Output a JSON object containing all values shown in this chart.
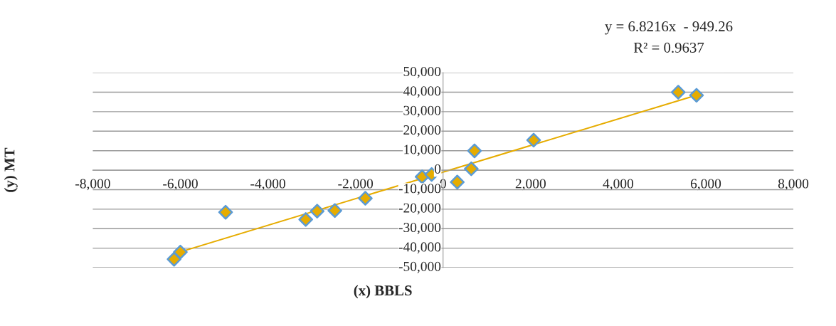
{
  "chart_data": {
    "type": "scatter",
    "xlabel": "(x) BBLS",
    "ylabel": "(y) MT",
    "annotations": [
      "y = 6.8216x  - 949.26",
      "R² = 0.9637"
    ],
    "series": [
      {
        "type": "scatter",
        "color": "#e6ac00",
        "marker": "diamond",
        "x": [
          -6144,
          -6000,
          -4967,
          -3137,
          -2876,
          -2472,
          -1776,
          -479,
          -261,
          324,
          644,
          718,
          2068,
          5371,
          5788
        ],
        "values": [
          -45700,
          -42000,
          -21600,
          -25300,
          -21000,
          -20700,
          -14400,
          -3400,
          -2200,
          -6100,
          700,
          9900,
          15400,
          40000,
          38400
        ]
      },
      {
        "type": "line",
        "color": "#e6ac00",
        "marker": "none",
        "x": [
          -6144,
          5788
        ],
        "values": [
          -42900,
          38500
        ]
      }
    ],
    "xlim": [
      -8000,
      8000
    ],
    "xticks": [
      {
        "value": -8000,
        "label": "-8,000"
      },
      {
        "value": -6000,
        "label": "-6,000"
      },
      {
        "value": -4000,
        "label": "-4,000"
      },
      {
        "value": -2000,
        "label": "-2,000"
      },
      0,
      {
        "value": 2000,
        "label": "2,000"
      },
      {
        "value": 4000,
        "label": "4,000"
      },
      {
        "value": 6000,
        "label": "6,000"
      },
      {
        "value": 8000,
        "label": "8,000"
      }
    ],
    "ylim": [
      -50000,
      50000
    ],
    "yticks": [
      {
        "value": -50000,
        "label": "-50,000"
      },
      {
        "value": -40000,
        "label": "-40,000"
      },
      {
        "value": -30000,
        "label": "-30,000"
      },
      {
        "value": -20000,
        "label": "-20,000"
      },
      {
        "value": -10000,
        "label": "-10,000"
      },
      0,
      {
        "value": 10000,
        "label": "10,000"
      },
      {
        "value": 20000,
        "label": "20,000"
      },
      {
        "value": 30000,
        "label": "30,000"
      },
      {
        "value": 40000,
        "label": "40,000"
      },
      {
        "value": 50000,
        "label": "50,000"
      }
    ],
    "grid": "y",
    "legend": false
  }
}
